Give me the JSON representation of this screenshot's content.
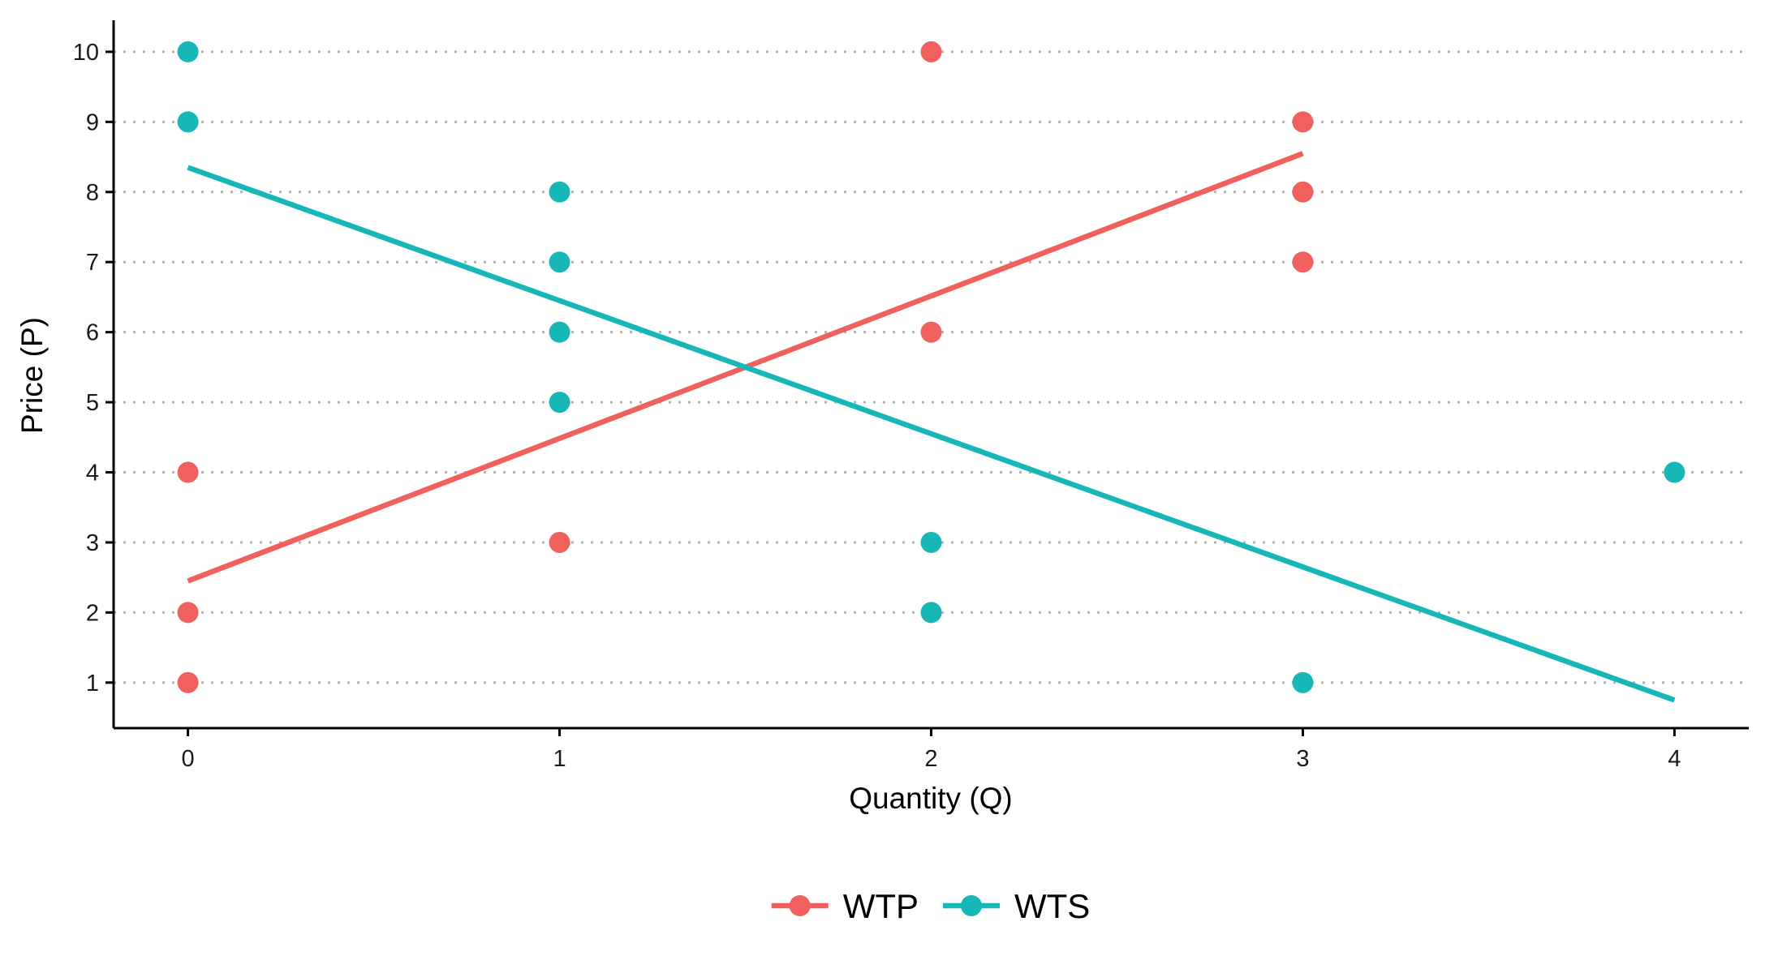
{
  "chart_data": {
    "type": "scatter",
    "xlabel": "Quantity (Q)",
    "ylabel": "Price (P)",
    "xlim": [
      -0.2,
      4.2
    ],
    "ylim": [
      0.35,
      10.45
    ],
    "x_ticks": [
      0,
      1,
      2,
      3,
      4
    ],
    "y_ticks": [
      1,
      2,
      3,
      4,
      5,
      6,
      7,
      8,
      9,
      10
    ],
    "grid": "horizontal-dotted",
    "legend_position": "bottom",
    "series": [
      {
        "name": "WTP",
        "color": "#f0605d",
        "points": [
          [
            0,
            1
          ],
          [
            0,
            2
          ],
          [
            0,
            4
          ],
          [
            1,
            3
          ],
          [
            2,
            6
          ],
          [
            2,
            10
          ],
          [
            3,
            7
          ],
          [
            3,
            8
          ],
          [
            3,
            9
          ]
        ],
        "fit_line": [
          [
            0,
            2.45
          ],
          [
            3,
            8.55
          ]
        ]
      },
      {
        "name": "WTS",
        "color": "#17b7b8",
        "points": [
          [
            0,
            9
          ],
          [
            0,
            10
          ],
          [
            1,
            5
          ],
          [
            1,
            6
          ],
          [
            1,
            7
          ],
          [
            1,
            8
          ],
          [
            2,
            2
          ],
          [
            2,
            3
          ],
          [
            3,
            1
          ],
          [
            4,
            4
          ]
        ],
        "fit_line": [
          [
            0,
            8.35
          ],
          [
            4,
            0.75
          ]
        ]
      }
    ]
  }
}
